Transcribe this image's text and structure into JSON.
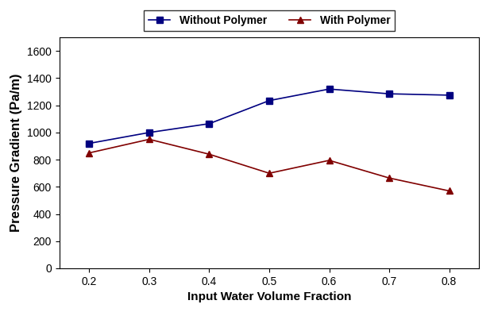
{
  "chart_data": {
    "type": "line",
    "x_label": "Input Water Volume Fraction",
    "y_label": "Pressure Gradient (Pa/m)",
    "x": [
      0.2,
      0.3,
      0.4,
      0.5,
      0.6,
      0.7,
      0.8
    ],
    "series": [
      {
        "name": "Without Polymer",
        "color": "#000080",
        "marker": "square",
        "line_style": "solid",
        "values": [
          920,
          1000,
          1065,
          1235,
          1320,
          1285,
          1275
        ]
      },
      {
        "name": "With Polymer",
        "color": "#800000",
        "marker": "triangle",
        "line_style": "solid",
        "values": [
          850,
          950,
          840,
          700,
          795,
          665,
          570
        ]
      }
    ],
    "xlim": [
      0.15,
      0.85
    ],
    "xticks": [
      0.2,
      0.3,
      0.4,
      0.5,
      0.6,
      0.7,
      0.8
    ],
    "ylim": [
      0,
      1700
    ],
    "yticks": [
      0,
      200,
      400,
      600,
      800,
      1000,
      1200,
      1400,
      1600
    ],
    "grid": false,
    "legend": "upper center"
  }
}
